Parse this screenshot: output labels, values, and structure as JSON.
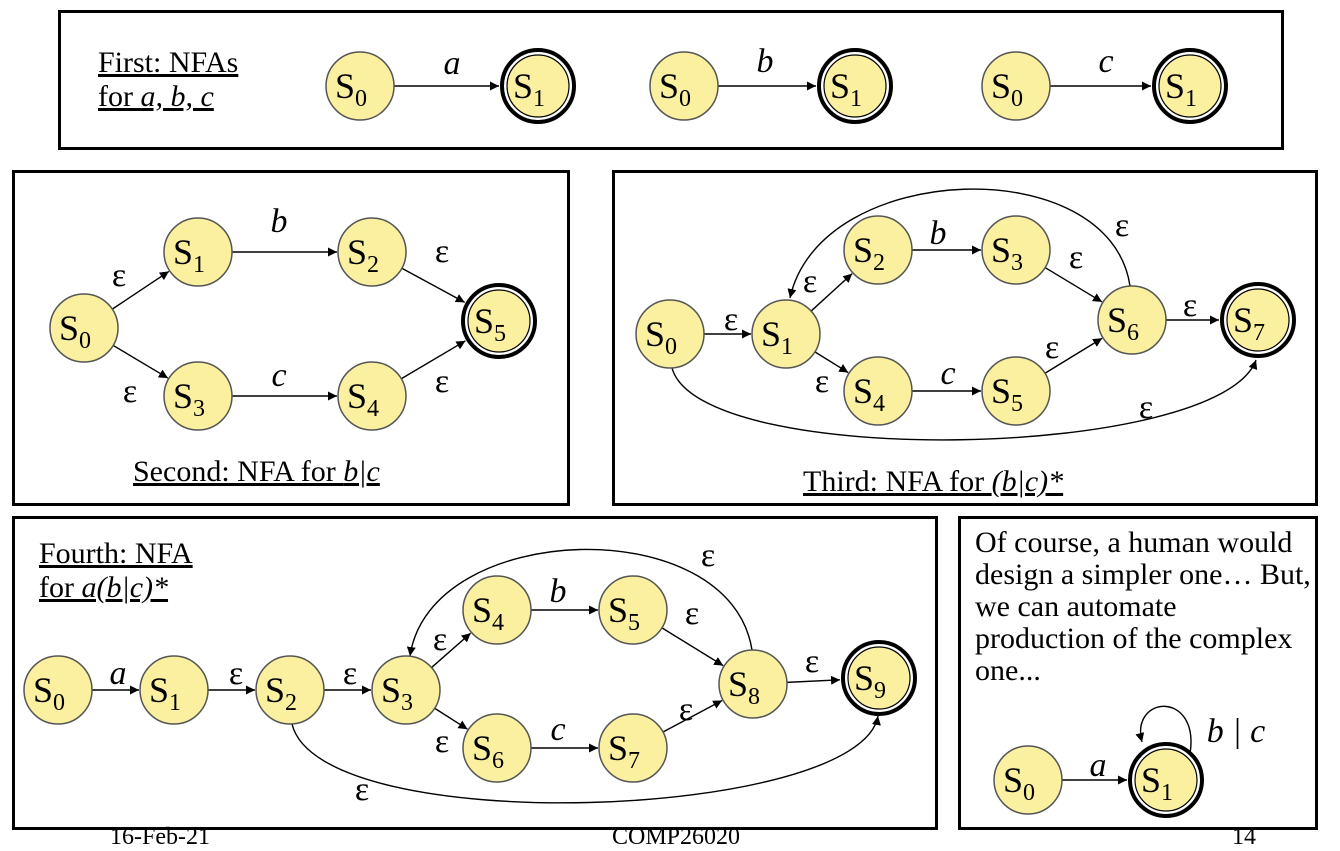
{
  "panels": {
    "first": {
      "title_line1": "First: NFAs",
      "title_line2_prefix": "for ",
      "title_line2_symbols": "a, b, c"
    },
    "second": {
      "title_prefix": "Second: NFA for ",
      "title_expr": "b|c"
    },
    "third": {
      "title_prefix": "Third: NFA for ",
      "title_expr": "(b|c)*"
    },
    "fourth": {
      "title_line1": "Fourth: NFA",
      "title_line2_prefix": "for ",
      "title_line2_expr": "a(b|c)*"
    },
    "fifth": {
      "note": "Of course, a human would design a simpler one… But, we can automate production of the complex one..."
    }
  },
  "symbols": {
    "epsilon": "ε",
    "a": "a",
    "b": "b",
    "c": "c",
    "b_or_c": "b | c"
  },
  "footer": {
    "date": "16-Feb-21",
    "course": "COMP26020",
    "page": "14"
  },
  "colors": {
    "state_fill": "#faf0a0",
    "border": "#000000"
  }
}
